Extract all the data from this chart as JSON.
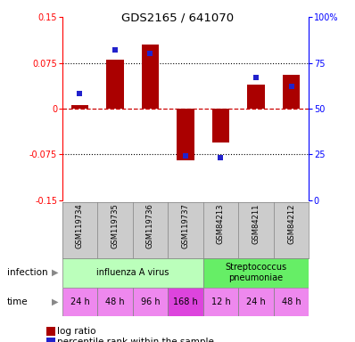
{
  "title": "GDS2165 / 641070",
  "samples": [
    "GSM119734",
    "GSM119735",
    "GSM119736",
    "GSM119737",
    "GSM84213",
    "GSM84211",
    "GSM84212"
  ],
  "log_ratio": [
    0.005,
    0.08,
    0.105,
    -0.085,
    -0.055,
    0.04,
    0.055
  ],
  "percentile": [
    58,
    82,
    80,
    24,
    23,
    67,
    62
  ],
  "bar_color": "#aa0000",
  "dot_color": "#2222cc",
  "ylim_left": [
    -0.15,
    0.15
  ],
  "ylim_right": [
    0,
    100
  ],
  "yticks_left": [
    -0.15,
    -0.075,
    0,
    0.075,
    0.15
  ],
  "yticks_right": [
    0,
    25,
    50,
    75,
    100
  ],
  "ytick_labels_left": [
    "-0.15",
    "-0.075",
    "0",
    "0.075",
    "0.15"
  ],
  "ytick_labels_right": [
    "0",
    "25",
    "50",
    "75",
    "100%"
  ],
  "hlines": [
    -0.075,
    0,
    0.075
  ],
  "hline_colors": [
    "black",
    "#cc0000",
    "black"
  ],
  "hline_styles": [
    "dotted",
    "dashed",
    "dotted"
  ],
  "infection_groups": [
    {
      "label": "influenza A virus",
      "start": 0,
      "end": 4,
      "color": "#bbffbb"
    },
    {
      "label": "Streptococcus\npneumoniae",
      "start": 4,
      "end": 7,
      "color": "#66ee66"
    }
  ],
  "time_labels": [
    "24 h",
    "48 h",
    "96 h",
    "168 h",
    "12 h",
    "24 h",
    "48 h"
  ],
  "time_colors_idx": [
    0,
    0,
    0,
    1,
    0,
    0,
    0
  ],
  "time_color_light": "#ee88ee",
  "time_color_dark": "#dd44dd",
  "infection_label": "infection",
  "time_label": "time",
  "legend_log_ratio": "log ratio",
  "legend_percentile": "percentile rank within the sample",
  "sample_bg": "#cccccc",
  "bar_width": 0.5
}
